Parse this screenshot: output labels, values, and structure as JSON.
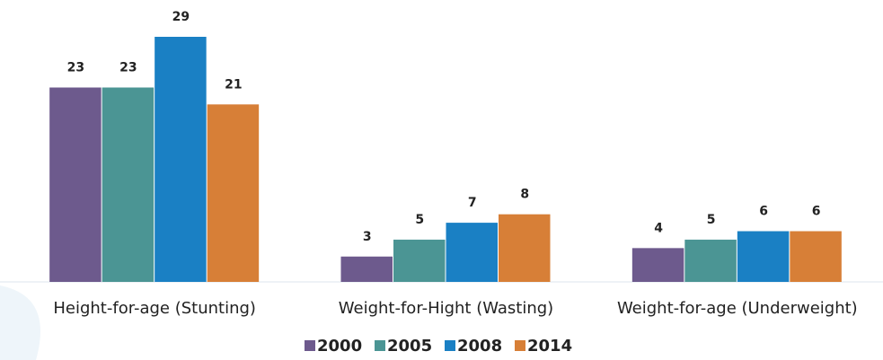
{
  "chart_data": {
    "type": "bar",
    "categories": [
      "Height-for-age (Stunting)",
      "Weight-for-Hight (Wasting)",
      "Weight-for-age (Underweight)"
    ],
    "series": [
      {
        "name": "2000",
        "color": "#6d5a8d",
        "values": [
          23,
          3,
          4
        ]
      },
      {
        "name": "2005",
        "color": "#4b9594",
        "values": [
          23,
          5,
          5
        ]
      },
      {
        "name": "2008",
        "color": "#1a80c4",
        "values": [
          29,
          7,
          6
        ]
      },
      {
        "name": "2014",
        "color": "#d77f37",
        "values": [
          21,
          8,
          6
        ]
      }
    ],
    "legend": "bottom"
  }
}
